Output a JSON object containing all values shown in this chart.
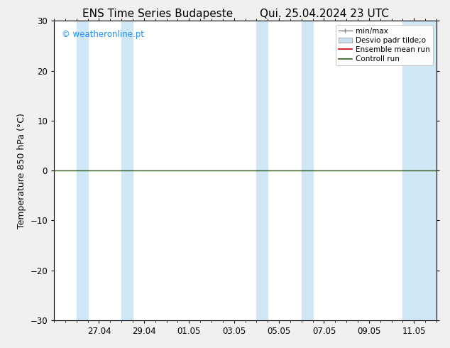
{
  "title_left": "ENS Time Series Budapeste",
  "title_right": "Qui. 25.04.2024 23 UTC",
  "ylabel": "Temperature 850 hPa (°C)",
  "ylim": [
    -30,
    30
  ],
  "yticks": [
    -30,
    -20,
    -10,
    0,
    10,
    20,
    30
  ],
  "bg_color": "#f0f0f0",
  "plot_bg_color": "#ffffff",
  "shaded_band_color": "#d0e8f5",
  "zero_line_color": "#2d5a1b",
  "zero_line_y": 0.0,
  "watermark": "© weatheronline.pt",
  "watermark_color": "#1e90ff",
  "x_tick_labels": [
    "27.04",
    "29.04",
    "01.05",
    "03.05",
    "05.05",
    "07.05",
    "09.05",
    "11.05"
  ],
  "x_tick_positions": [
    2,
    4,
    6,
    8,
    10,
    12,
    14,
    16
  ],
  "shaded_columns": [
    {
      "start": 1,
      "end": 1.5
    },
    {
      "start": 3,
      "end": 3.5
    },
    {
      "start": 9,
      "end": 9.5
    },
    {
      "start": 11,
      "end": 11.5
    },
    {
      "start": 15.5,
      "end": 17
    }
  ],
  "x_min": 0,
  "x_max": 17,
  "title_fontsize": 11,
  "axis_fontsize": 9,
  "tick_fontsize": 8.5
}
